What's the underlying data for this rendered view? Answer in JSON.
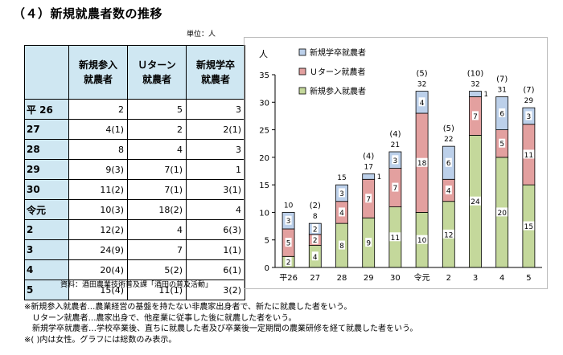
{
  "title": "（４）新規就農者数の推移",
  "unit": "単位：人",
  "table": {
    "headers": [
      {
        "line1": "新規参入",
        "line2": "就農者"
      },
      {
        "line1": "Ｕターン",
        "line2": "就農者"
      },
      {
        "line1": "新規学卒",
        "line2": "就農者"
      }
    ],
    "rows": [
      {
        "year": "平 26",
        "cells": [
          "2",
          "5",
          "3"
        ]
      },
      {
        "year": "27",
        "cells": [
          "4(1)",
          "2",
          "2(1)"
        ]
      },
      {
        "year": "28",
        "cells": [
          "8",
          "4",
          "3"
        ]
      },
      {
        "year": "29",
        "cells": [
          "9(3)",
          "7(1)",
          "1"
        ]
      },
      {
        "year": "30",
        "cells": [
          "11(2)",
          "7(1)",
          "3(1)"
        ]
      },
      {
        "year": "令元",
        "cells": [
          "10(3)",
          "18(2)",
          "4"
        ]
      },
      {
        "year": "2",
        "cells": [
          "12(2)",
          "4",
          "6(3)"
        ]
      },
      {
        "year": "3",
        "cells": [
          "24(9)",
          "7",
          "1(1)"
        ]
      },
      {
        "year": "4",
        "cells": [
          "20(4)",
          "5(2)",
          "6(1)"
        ]
      },
      {
        "year": "5",
        "cells": [
          "15(4)",
          "11(1)",
          "3(2)"
        ]
      }
    ]
  },
  "source": "資料：酒田農業技術普及課「酒田の普及活動」",
  "chart_data": {
    "type": "bar",
    "stacked": true,
    "ylabel": "人",
    "ylim": [
      0,
      35
    ],
    "yticks": [
      "0",
      "5",
      "10",
      "15",
      "20",
      "25",
      "30",
      "35"
    ],
    "categories": [
      "平26",
      "27",
      "28",
      "29",
      "30",
      "令元",
      "2",
      "3",
      "4",
      "5"
    ],
    "series": [
      {
        "name": "新規参入就農者",
        "color": "#c4d89b",
        "values": [
          2,
          4,
          8,
          9,
          11,
          10,
          12,
          24,
          20,
          15
        ]
      },
      {
        "name": "Ｕターン就農者",
        "color": "#e3a09f",
        "values": [
          5,
          2,
          4,
          7,
          7,
          18,
          4,
          7,
          5,
          11
        ]
      },
      {
        "name": "新規学卒就農者",
        "color": "#bcd0ea",
        "values": [
          3,
          2,
          3,
          1,
          3,
          4,
          6,
          1,
          6,
          3
        ]
      }
    ],
    "legend": [
      {
        "name": "新規学卒就農者",
        "color": "#bcd0ea"
      },
      {
        "name": "Ｕターン就農者",
        "color": "#e3a09f"
      },
      {
        "name": "新規参入就農者",
        "color": "#c4d89b"
      }
    ],
    "legend_position": "top-left",
    "totals": [
      "10",
      "8",
      "15",
      "17",
      "21",
      "32",
      "22",
      "32",
      "31",
      "29"
    ],
    "female": [
      "",
      "(2)",
      "",
      "(4)",
      "(4)",
      "(5)",
      "(5)",
      "(10)",
      "(7)",
      "(7)"
    ]
  },
  "notes": [
    "※新規参入就農者…農業経営の基盤を持たない非農家出身者で、新たに就農した者をいう。",
    "　Ｕターン就農者…農家出身で、他産業に従事した後に就農した者をいう。",
    "　新規学卒就農者…学校卒業後、直ちに就農した者及び卒業後一定期間の農業研修を経て就農した者をいう。",
    "※( )内は女性。グラフには総数のみ表示。"
  ]
}
